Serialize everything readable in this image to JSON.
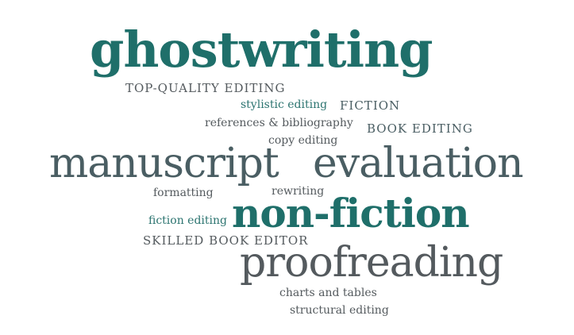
{
  "word_cloud": {
    "words": [
      "ghostwriting",
      "TOP-QUALITY EDITING",
      "stylistic editing",
      "FICTION",
      "references & bibliography",
      "BOOK EDITING",
      "copy editing",
      "manuscript",
      "evaluation",
      "formatting",
      "rewriting",
      "fiction editing",
      "non-fiction",
      "SKILLED BOOK EDITOR",
      "proofreading",
      "charts and tables",
      "structural editing"
    ]
  },
  "colors": {
    "teal": "#1f6f6a",
    "teal_alt": "#2c7470",
    "slate": "#4a5e63",
    "grey": "#545a5e"
  }
}
